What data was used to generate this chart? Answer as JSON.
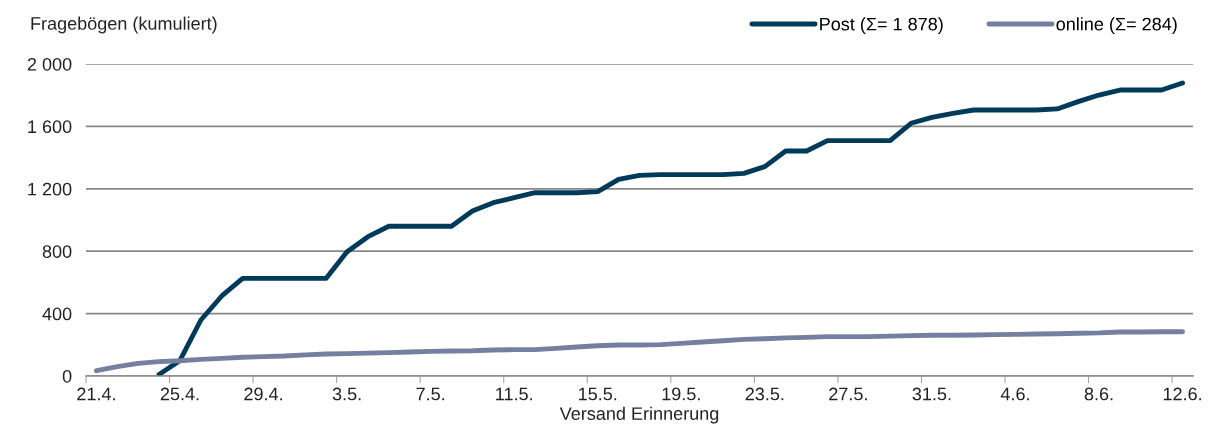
{
  "chart_data": {
    "type": "line",
    "ylabel": "Fragebögen (kumuliert)",
    "xlabel": "Versand Erinnerung",
    "categories": [
      "21.4.",
      null,
      null,
      null,
      "25.4.",
      null,
      null,
      null,
      "29.4.",
      null,
      null,
      null,
      "3.5.",
      null,
      null,
      null,
      "7.5.",
      null,
      null,
      null,
      "11.5.",
      null,
      null,
      null,
      "15.5.",
      null,
      null,
      null,
      "19.5.",
      null,
      null,
      null,
      "23.5.",
      null,
      null,
      null,
      "27.5.",
      null,
      null,
      null,
      "31.5.",
      null,
      null,
      null,
      "4.6.",
      null,
      null,
      null,
      "8.6.",
      null,
      null,
      null,
      "12.6."
    ],
    "series": [
      {
        "name": "Post (Σ= 1 878)",
        "color": "#003a5a",
        "values": [
          null,
          null,
          null,
          10,
          100,
          359,
          513,
          626,
          626,
          626,
          626,
          626,
          797,
          893,
          960,
          960,
          960,
          960,
          1058,
          1111,
          1143,
          1175,
          1175,
          1175,
          1182,
          1261,
          1286,
          1291,
          1291,
          1291,
          1291,
          1299,
          1342,
          1442,
          1442,
          1509,
          1509,
          1509,
          1509,
          1620,
          1658,
          1684,
          1705,
          1705,
          1705,
          1705,
          1712,
          1759,
          1801,
          1833,
          1833,
          1833,
          1878
        ]
      },
      {
        "name": "online (Σ= 284)",
        "color": "#7580a0",
        "values": [
          34,
          60,
          81,
          92,
          98,
          107,
          113,
          120,
          124,
          128,
          135,
          141,
          143,
          147,
          150,
          154,
          158,
          160,
          162,
          167,
          169,
          169,
          177,
          186,
          194,
          199,
          199,
          201,
          209,
          218,
          226,
          235,
          239,
          244,
          248,
          252,
          252,
          252,
          256,
          259,
          261,
          261,
          263,
          265,
          267,
          269,
          271,
          274,
          276,
          282,
          282,
          284,
          284
        ]
      }
    ],
    "ylim": [
      0,
      2000
    ],
    "yticks": [
      0,
      400,
      800,
      {
        "value": 1200,
        "label": "1 200"
      },
      {
        "value": 1600,
        "label": "1 600"
      },
      {
        "value": 2000,
        "label": "2 000"
      }
    ],
    "grid": "y",
    "legend": "top right",
    "line_style": "solid",
    "marker": "none"
  }
}
